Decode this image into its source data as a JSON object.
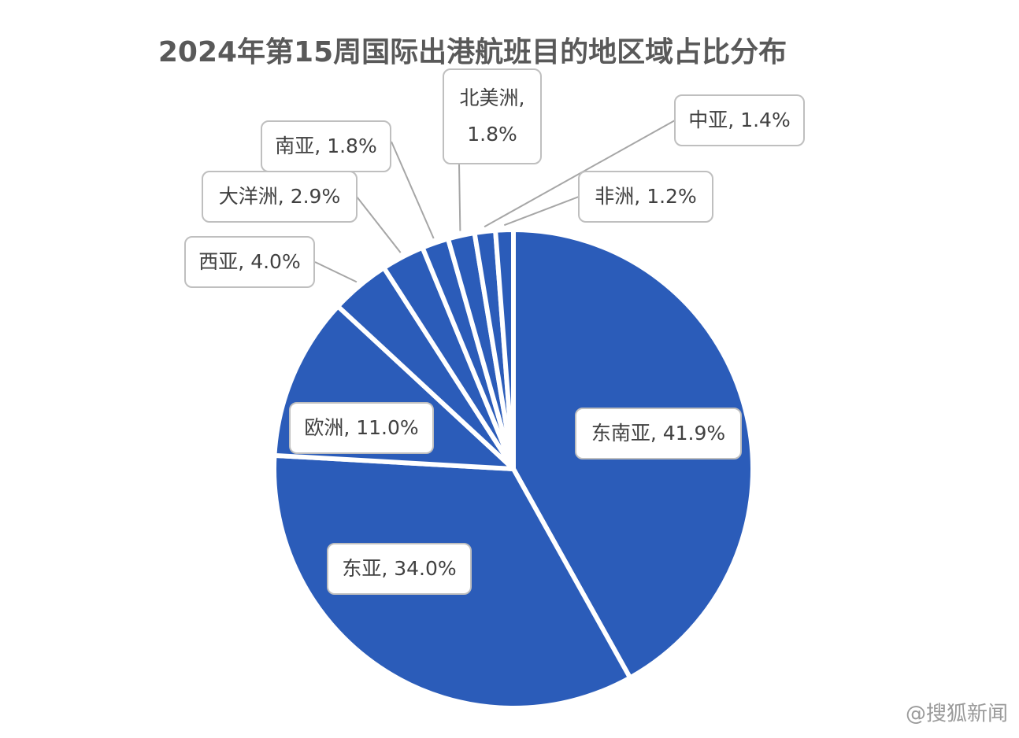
{
  "chart_data": {
    "type": "pie",
    "title": "2024年第15周国际出港航班目的地区域占比分布",
    "categories": [
      "东南亚",
      "东亚",
      "欧洲",
      "西亚",
      "大洋洲",
      "南亚",
      "北美洲",
      "中亚",
      "非洲"
    ],
    "values": [
      41.9,
      34.0,
      11.0,
      4.0,
      2.9,
      1.8,
      1.8,
      1.4,
      1.2
    ],
    "value_labels": [
      "41.9%",
      "34.0%",
      "11.0%",
      "4.0%",
      "2.9%",
      "1.8%",
      "1.8%",
      "1.4%",
      "1.2%"
    ],
    "label_separator": ", ",
    "color": "#2b5cb9",
    "watermark": "@搜狐新闻"
  }
}
